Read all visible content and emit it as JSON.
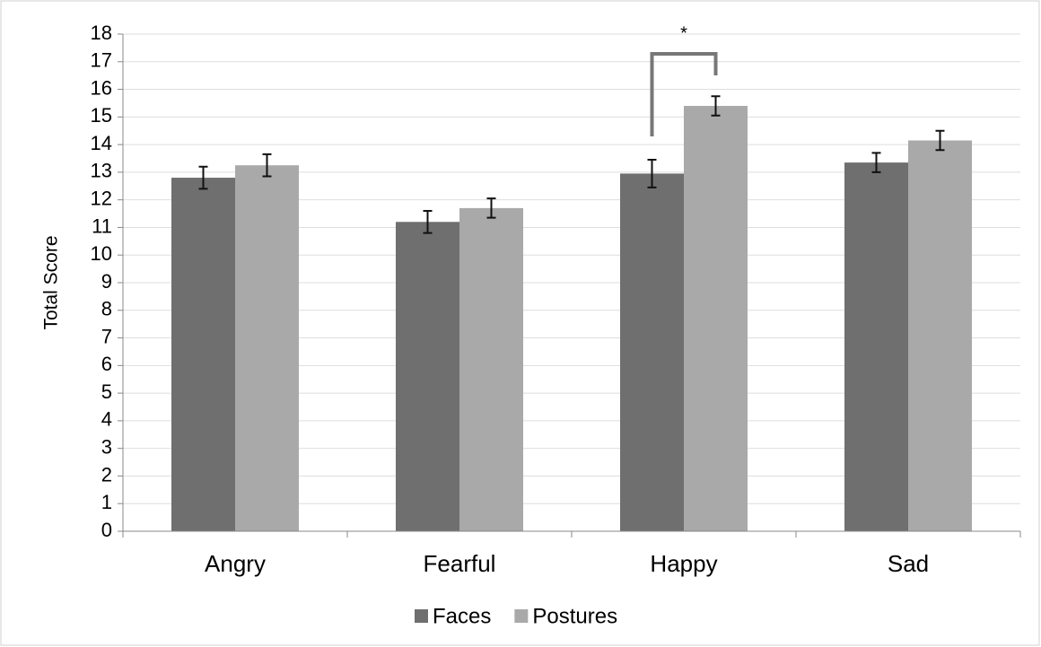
{
  "chart_data": {
    "type": "bar",
    "y_label": "Total Score",
    "annotation": "*",
    "categories": [
      "Angry",
      "Fearful",
      "Happy",
      "Sad"
    ],
    "series": [
      {
        "name": "Faces",
        "color": "#6f6f6f",
        "values": [
          12.8,
          11.2,
          12.95,
          13.35
        ],
        "errors": [
          0.4,
          0.4,
          0.5,
          0.35
        ]
      },
      {
        "name": "Postures",
        "color": "#a9a9a9",
        "values": [
          13.25,
          11.7,
          15.4,
          14.15
        ],
        "errors": [
          0.4,
          0.35,
          0.35,
          0.35
        ]
      }
    ],
    "ylim": [
      0,
      18
    ],
    "yticks": [
      0,
      1,
      2,
      3,
      4,
      5,
      6,
      7,
      8,
      9,
      10,
      11,
      12,
      13,
      14,
      15,
      16,
      17,
      18
    ],
    "grid": true,
    "legend": "bottom"
  }
}
